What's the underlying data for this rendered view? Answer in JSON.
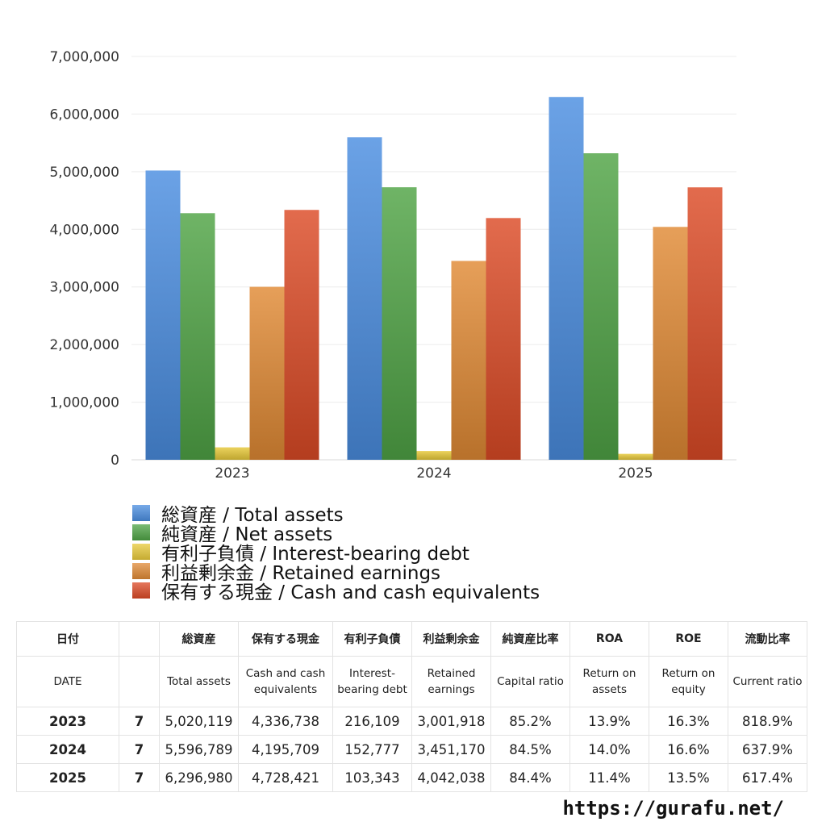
{
  "chart_data": {
    "type": "bar",
    "categories": [
      "2023",
      "2024",
      "2025"
    ],
    "ylim": [
      0,
      7000000
    ],
    "yticks": [
      0,
      1000000,
      2000000,
      3000000,
      4000000,
      5000000,
      6000000,
      7000000
    ],
    "ytick_labels": [
      "0",
      "1,000,000",
      "2,000,000",
      "3,000,000",
      "4,000,000",
      "5,000,000",
      "6,000,000",
      "7,000,000"
    ],
    "grid": true,
    "legend_position": "bottom-left",
    "series": [
      {
        "name": "総資産 / Total assets",
        "color": "#4a8de0",
        "values": [
          5020119,
          5596789,
          6296980
        ]
      },
      {
        "name": "純資産 / Net assets",
        "color": "#4fa445",
        "values": [
          4280000,
          4730000,
          5320000
        ]
      },
      {
        "name": "有利子負債 / Interest-bearing debt",
        "color": "#e8c93a",
        "values": [
          216109,
          152777,
          103343
        ]
      },
      {
        "name": "利益剰余金 / Retained earnings",
        "color": "#e08a35",
        "values": [
          3001918,
          3451170,
          4042038
        ]
      },
      {
        "name": "保有する現金 /  Cash and cash equivalents",
        "color": "#dc4a26",
        "values": [
          4336738,
          4195709,
          4728421
        ]
      }
    ]
  },
  "table": {
    "header_ja": [
      "日付",
      "",
      "総資産",
      "保有する現金",
      "有利子負債",
      "利益剰余金",
      "純資産比率",
      "ROA",
      "ROE",
      "流動比率"
    ],
    "header_en": [
      "DATE",
      "",
      "Total assets",
      "Cash and cash equivalents",
      "Interest-bearing debt",
      "Retained earnings",
      "Capital ratio",
      "Return on assets",
      "Return on equity",
      "Current ratio"
    ],
    "rows": [
      [
        "2023",
        "7",
        "5,020,119",
        "4,336,738",
        "216,109",
        "3,001,918",
        "85.2%",
        "13.9%",
        "16.3%",
        "818.9%"
      ],
      [
        "2024",
        "7",
        "5,596,789",
        "4,195,709",
        "152,777",
        "3,451,170",
        "84.5%",
        "14.0%",
        "16.6%",
        "637.9%"
      ],
      [
        "2025",
        "7",
        "6,296,980",
        "4,728,421",
        "103,343",
        "4,042,038",
        "84.4%",
        "11.4%",
        "13.5%",
        "617.4%"
      ]
    ]
  },
  "footer": {
    "url": "https://gurafu.net/"
  }
}
